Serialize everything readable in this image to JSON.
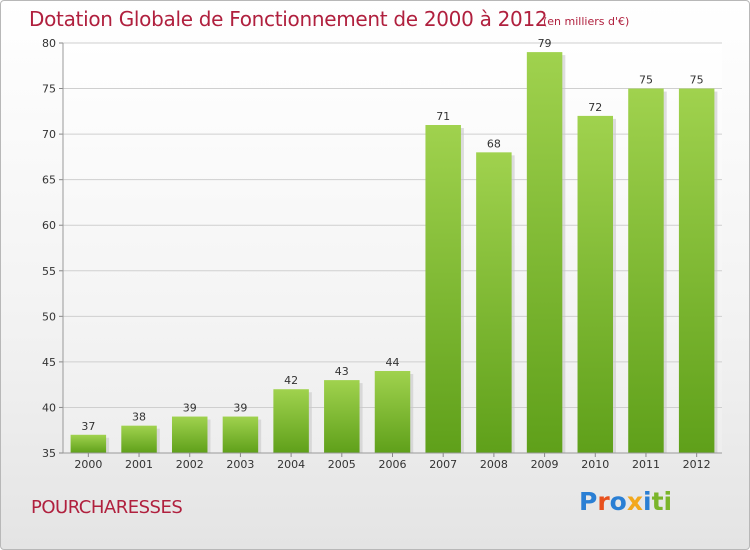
{
  "header": {
    "title": "Dotation Globale de Fonctionnement de 2000 à 2012",
    "subtitle": "(en milliers d'€)"
  },
  "footer": {
    "commune": "POURCHARESSES",
    "logo": {
      "text": "Proxiti",
      "letters": [
        {
          "char": "P",
          "color": "#2a7fd4"
        },
        {
          "char": "r",
          "color": "#e8501c"
        },
        {
          "char": "o",
          "color": "#2a7fd4"
        },
        {
          "char": "x",
          "color": "#f2a81d"
        },
        {
          "char": "i",
          "color": "#2a7fd4"
        },
        {
          "char": "t",
          "color": "#7bb52a"
        },
        {
          "char": "i",
          "color": "#7bb52a"
        }
      ]
    }
  },
  "chart_data": {
    "type": "bar",
    "title": "Dotation Globale de Fonctionnement de 2000 à 2012",
    "subtitle": "(en milliers d'€)",
    "categories": [
      "2000",
      "2001",
      "2002",
      "2003",
      "2004",
      "2005",
      "2006",
      "2007",
      "2008",
      "2009",
      "2010",
      "2011",
      "2012"
    ],
    "values": [
      37,
      38,
      39,
      39,
      42,
      43,
      44,
      71,
      68,
      79,
      72,
      75,
      75
    ],
    "ylim": [
      35,
      80
    ],
    "yticks": [
      35,
      40,
      45,
      50,
      55,
      60,
      65,
      70,
      75,
      80
    ],
    "grid": true,
    "bar_color_top": "#a0d24e",
    "bar_color_bottom": "#5fa01a"
  }
}
